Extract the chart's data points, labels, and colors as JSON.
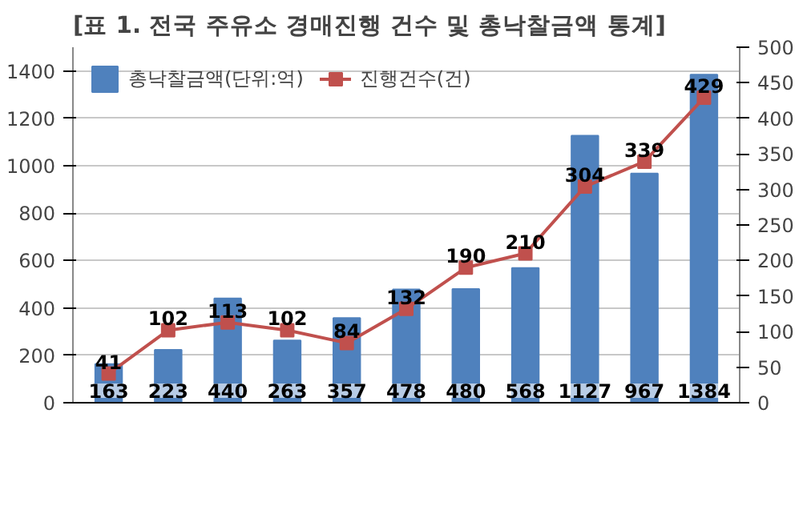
{
  "chart_data": {
    "type": "bar",
    "title": "[표 1. 전국 주유소 경매진행 건수 및 총낙찰금액 통계]",
    "categories": [
      null,
      null,
      null,
      null,
      null,
      null,
      null,
      null,
      null,
      null,
      null
    ],
    "series": [
      {
        "name": "총낙찰금액(단위:억)",
        "color": "#4f81bd",
        "values": [
          163,
          223,
          440,
          263,
          357,
          478,
          480,
          568,
          1127,
          967,
          1384
        ]
      },
      {
        "name": "진행건수(건)",
        "type": "line",
        "axis": "y2",
        "color": "#c0504d",
        "marker": "square",
        "values": [
          41,
          102,
          113,
          102,
          84,
          132,
          190,
          210,
          304,
          339,
          429
        ]
      }
    ],
    "ylim": [
      0,
      1500
    ],
    "yticks": [
      0,
      200,
      400,
      600,
      800,
      1000,
      1200,
      1400
    ],
    "y2lim": [
      0,
      500
    ],
    "y2ticks": [
      0,
      50,
      100,
      150,
      200,
      250,
      300,
      350,
      400,
      450,
      500
    ],
    "data_labels": true,
    "grid": "y",
    "legend": "top left",
    "tick_labels": "y"
  }
}
